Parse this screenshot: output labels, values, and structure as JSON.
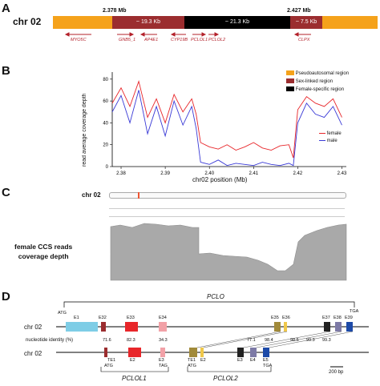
{
  "panelA": {
    "label": "A",
    "chrom": "chr 02",
    "pos_left": "2.378 Mb",
    "pos_right": "2.427 Mb",
    "seg1": "~ 19.3 Kb",
    "seg2": "~ 21.3 Kb",
    "seg3": "~ 7.5 Kb",
    "genes": [
      "MYO5C",
      "GNB5_1",
      "AP4E1",
      "CYP19B",
      "PCLOL1",
      "PCLOL2",
      "CLPX"
    ],
    "legend": [
      "Pseudoautosomal region",
      "Sex-linked region",
      "Female-specific region"
    ],
    "colors": {
      "pseudo": "#f5a21b",
      "sex": "#9b2d2f",
      "female": "#000000",
      "gene": "#b3202a"
    }
  },
  "panelB": {
    "label": "B",
    "chart_data": {
      "type": "line",
      "xlabel": "chr02 position (Mb)",
      "ylabel": "read average coverage depth",
      "xlim": [
        2.378,
        2.431
      ],
      "ylim": [
        0,
        85
      ],
      "xticks": [
        "2.38",
        "2.39",
        "2.40",
        "2.41",
        "2.42",
        "2.43"
      ],
      "yticks": [
        "0",
        "20",
        "40",
        "60",
        "80"
      ],
      "series": [
        {
          "name": "female",
          "color": "#e8262a",
          "x": [
            2.378,
            2.38,
            2.382,
            2.384,
            2.386,
            2.388,
            2.39,
            2.392,
            2.394,
            2.396,
            2.397,
            2.398,
            2.4,
            2.402,
            2.404,
            2.406,
            2.408,
            2.41,
            2.412,
            2.414,
            2.416,
            2.418,
            2.419,
            2.42,
            2.422,
            2.424,
            2.426,
            2.428,
            2.43
          ],
          "y": [
            58,
            72,
            55,
            78,
            45,
            62,
            40,
            66,
            50,
            62,
            48,
            22,
            18,
            16,
            20,
            15,
            18,
            22,
            17,
            15,
            19,
            20,
            8,
            52,
            64,
            58,
            55,
            62,
            45
          ]
        },
        {
          "name": "male",
          "color": "#3a3ad6",
          "x": [
            2.378,
            2.38,
            2.382,
            2.384,
            2.386,
            2.388,
            2.39,
            2.392,
            2.394,
            2.396,
            2.397,
            2.398,
            2.4,
            2.402,
            2.404,
            2.406,
            2.408,
            2.41,
            2.412,
            2.414,
            2.416,
            2.418,
            2.419,
            2.42,
            2.422,
            2.424,
            2.426,
            2.428,
            2.43
          ],
          "y": [
            50,
            65,
            40,
            70,
            30,
            55,
            28,
            60,
            38,
            55,
            35,
            4,
            2,
            6,
            1,
            3,
            2,
            1,
            4,
            2,
            1,
            3,
            1,
            40,
            58,
            48,
            45,
            55,
            38
          ]
        }
      ]
    }
  },
  "panelC": {
    "label": "C",
    "chrom": "chr 02",
    "caption": "female CCS reads\ncoverage depth"
  },
  "panelD": {
    "label": "D",
    "gene": "PCLO",
    "chrom1": "chr 02",
    "chrom2": "chr 02",
    "identity_label": "nucleotide identity (%)",
    "exons_top": [
      "E1",
      "E32",
      "E33",
      "E34",
      "E35",
      "E36",
      "E37",
      "E38",
      "E39"
    ],
    "identities": [
      "71.6",
      "82.3",
      "34.3",
      "77.1",
      "98.4",
      "98.5",
      "99.3",
      "99.3"
    ],
    "start": "ATG",
    "stop": "TGA",
    "bottom_labels": [
      "TE1",
      "E2",
      "E3",
      "TE1",
      "E2",
      "E3",
      "E4",
      "E5"
    ],
    "sub_labels": [
      "ATG",
      "TAG",
      "ATG",
      "TGA"
    ],
    "gene1": "PCLOL1",
    "gene2": "PCLOL2",
    "scale": "200 bp"
  }
}
